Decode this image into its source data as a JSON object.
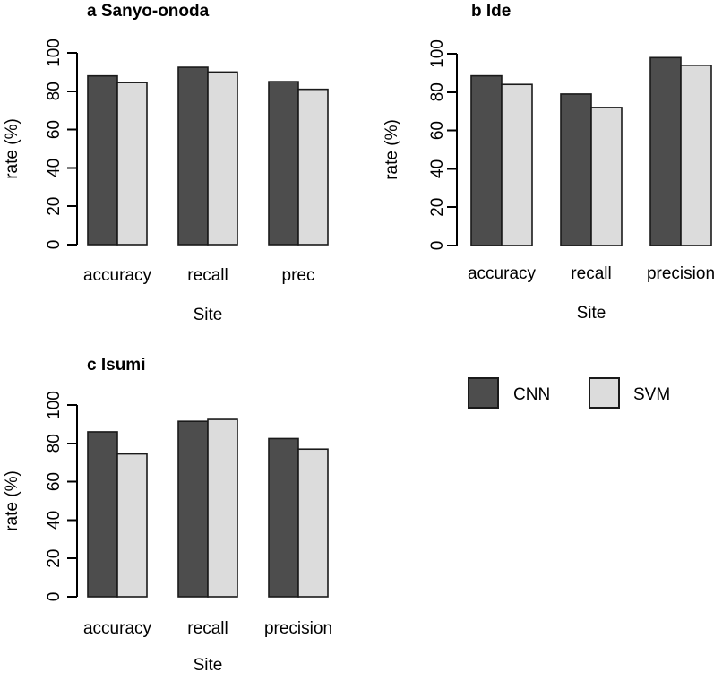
{
  "page": {
    "background": "#ffffff"
  },
  "colors": {
    "cnn_fill": "#4D4D4D",
    "svm_fill": "#DCDCDC",
    "bar_border": "#1a1a1a",
    "axis": "#000000",
    "text": "#000000"
  },
  "legend": {
    "items": [
      {
        "label": "CNN",
        "fill": "#4D4D4D"
      },
      {
        "label": "SVM",
        "fill": "#DCDCDC"
      }
    ]
  },
  "chart_data": [
    {
      "type": "bar",
      "panel": "a",
      "title": "a Sanyo-onoda",
      "categories": [
        "accuracy",
        "recall",
        "prec"
      ],
      "series": [
        {
          "name": "CNN",
          "values": [
            88,
            92.5,
            85
          ]
        },
        {
          "name": "SVM",
          "values": [
            84.5,
            90,
            81
          ]
        }
      ],
      "xlabel": "Site",
      "ylabel": "rate (%)",
      "ylim": [
        0,
        100
      ],
      "yticks": [
        0,
        20,
        40,
        60,
        80,
        100
      ],
      "grid": false,
      "legend_position": "shared-bottom-right"
    },
    {
      "type": "bar",
      "panel": "b",
      "title": "b Ide",
      "categories": [
        "accuracy",
        "recall",
        "precision"
      ],
      "series": [
        {
          "name": "CNN",
          "values": [
            88.5,
            79,
            98
          ]
        },
        {
          "name": "SVM",
          "values": [
            84,
            72,
            94
          ]
        }
      ],
      "xlabel": "Site",
      "ylabel": "rate (%)",
      "ylim": [
        0,
        100
      ],
      "yticks": [
        0,
        20,
        40,
        60,
        80,
        100
      ],
      "grid": false,
      "legend_position": "shared-bottom-right"
    },
    {
      "type": "bar",
      "panel": "c",
      "title": "c Isumi",
      "categories": [
        "accuracy",
        "recall",
        "precision"
      ],
      "series": [
        {
          "name": "CNN",
          "values": [
            86,
            91.5,
            82.5
          ]
        },
        {
          "name": "SVM",
          "values": [
            74.5,
            92.5,
            77
          ]
        }
      ],
      "xlabel": "Site",
      "ylabel": "rate (%)",
      "ylim": [
        0,
        100
      ],
      "yticks": [
        0,
        20,
        40,
        60,
        80,
        100
      ],
      "grid": false,
      "legend_position": "shared-bottom-right"
    }
  ]
}
